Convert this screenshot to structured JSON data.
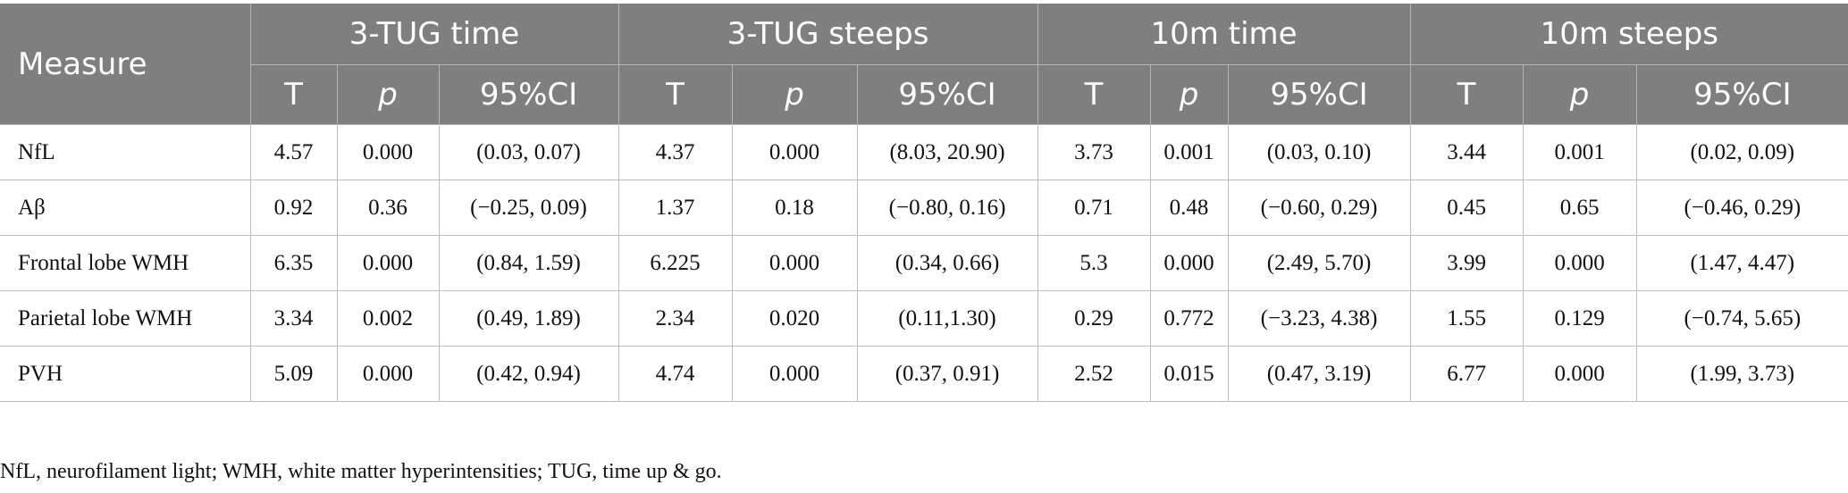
{
  "table": {
    "measure_header": "Measure",
    "groups": [
      "3-TUG time",
      "3-TUG steeps",
      "10m time",
      "10m steeps"
    ],
    "sub_headers": [
      "T",
      "p",
      "95%CI"
    ],
    "rows": [
      {
        "measure": "NfL",
        "cells": [
          "4.57",
          "0.000",
          "(0.03, 0.07)",
          "4.37",
          "0.000",
          "(8.03, 20.90)",
          "3.73",
          "0.001",
          "(0.03, 0.10)",
          "3.44",
          "0.001",
          "(0.02, 0.09)"
        ]
      },
      {
        "measure": "Aβ",
        "cells": [
          "0.92",
          "0.36",
          "(−0.25, 0.09)",
          "1.37",
          "0.18",
          "(−0.80, 0.16)",
          "0.71",
          "0.48",
          "(−0.60, 0.29)",
          "0.45",
          "0.65",
          "(−0.46, 0.29)"
        ]
      },
      {
        "measure": "Frontal lobe WMH",
        "cells": [
          "6.35",
          "0.000",
          "(0.84, 1.59)",
          "6.225",
          "0.000",
          "(0.34, 0.66)",
          "5.3",
          "0.000",
          "(2.49, 5.70)",
          "3.99",
          "0.000",
          "(1.47, 4.47)"
        ]
      },
      {
        "measure": "Parietal lobe WMH",
        "cells": [
          "3.34",
          "0.002",
          "(0.49, 1.89)",
          "2.34",
          "0.020",
          "(0.11,1.30)",
          "0.29",
          "0.772",
          "(−3.23, 4.38)",
          "1.55",
          "0.129",
          "(−0.74, 5.65)"
        ]
      },
      {
        "measure": "PVH",
        "cells": [
          "5.09",
          "0.000",
          "(0.42, 0.94)",
          "4.74",
          "0.000",
          "(0.37, 0.91)",
          "2.52",
          "0.015",
          "(0.47, 3.19)",
          "6.77",
          "0.000",
          "(1.99, 3.73)"
        ]
      }
    ]
  },
  "footnote": "NfL, neurofilament light; WMH, white matter hyperintensities; TUG, time up & go.",
  "colors": {
    "header_bg": "#7f7f7f",
    "header_text": "#ffffff",
    "grid": "#bdbdbd"
  }
}
